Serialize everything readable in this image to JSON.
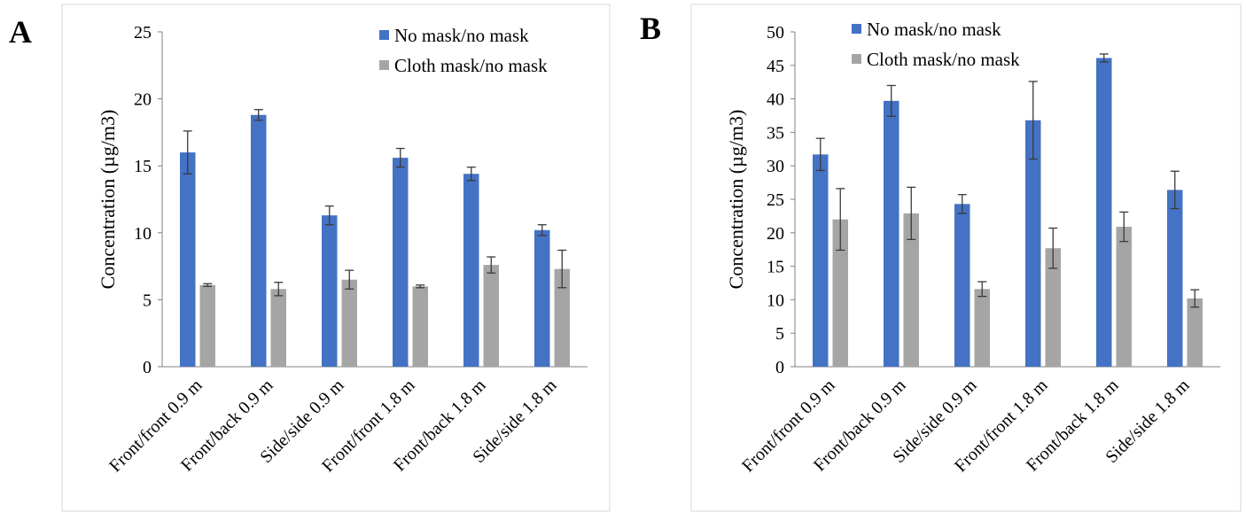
{
  "colors": {
    "no_mask": "#4472C4",
    "cloth_mask": "#A5A5A5",
    "error_bar": "#3a3a3a",
    "axis": "#808080",
    "frame": "#D9D9D9"
  },
  "chart_data": [
    {
      "panel": "A",
      "type": "bar",
      "ylabel": "Concentration (µg/m3)",
      "ylim": [
        0,
        25
      ],
      "ytick_step": 5,
      "yticks": [
        "0",
        "5",
        "10",
        "15",
        "20",
        "25"
      ],
      "grid": false,
      "legend_position": "top-right",
      "categories": [
        "Front/front 0.9 m",
        "Front/back 0.9 m",
        "Side/side 0.9 m",
        "Front/front 1.8 m",
        "Front/back 1.8 m",
        "Side/side 1.8 m"
      ],
      "series": [
        {
          "name": "No mask/no mask",
          "color_key": "no_mask",
          "values": [
            16.0,
            18.8,
            11.3,
            15.6,
            14.4,
            10.2
          ],
          "errors": [
            1.6,
            0.4,
            0.7,
            0.7,
            0.5,
            0.4
          ]
        },
        {
          "name": "Cloth mask/no mask",
          "color_key": "cloth_mask",
          "values": [
            6.1,
            5.8,
            6.5,
            6.0,
            7.6,
            7.3
          ],
          "errors": [
            0.1,
            0.5,
            0.7,
            0.1,
            0.6,
            1.4
          ]
        }
      ]
    },
    {
      "panel": "B",
      "type": "bar",
      "ylabel": "Concentration (µg/m3)",
      "ylim": [
        0,
        50
      ],
      "ytick_step": 5,
      "yticks": [
        "0",
        "5",
        "10",
        "15",
        "20",
        "25",
        "30",
        "35",
        "40",
        "45",
        "50"
      ],
      "grid": false,
      "legend_position": "top-left",
      "categories": [
        "Front/front 0.9 m",
        "Front/back 0.9 m",
        "Side/side 0.9 m",
        "Front/front 1.8 m",
        "Front/back 1.8 m",
        "Side/side 1.8 m"
      ],
      "series": [
        {
          "name": "No mask/no mask",
          "color_key": "no_mask",
          "values": [
            31.7,
            39.7,
            24.3,
            36.8,
            46.1,
            26.4
          ],
          "errors": [
            2.4,
            2.3,
            1.4,
            5.8,
            0.6,
            2.8
          ]
        },
        {
          "name": "Cloth mask/no mask",
          "color_key": "cloth_mask",
          "values": [
            22.0,
            22.9,
            11.6,
            17.7,
            20.9,
            10.2
          ],
          "errors": [
            4.6,
            3.9,
            1.1,
            3.0,
            2.2,
            1.3
          ]
        }
      ]
    }
  ]
}
